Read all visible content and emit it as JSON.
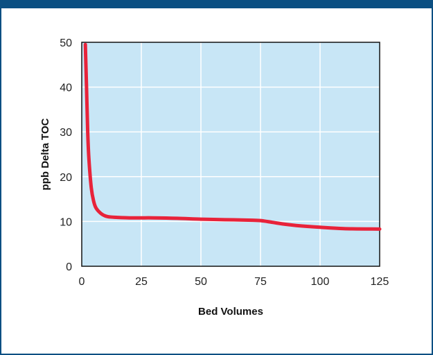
{
  "chart_data": {
    "type": "line",
    "title": "",
    "xlabel": "Bed Volumes",
    "ylabel": "ppb Delta TOC",
    "xlim": [
      0,
      125
    ],
    "ylim": [
      0,
      50
    ],
    "x_ticks": [
      "0",
      "25",
      "50",
      "75",
      "100",
      "125"
    ],
    "y_ticks": [
      "0",
      "10",
      "20",
      "30",
      "40",
      "50"
    ],
    "grid": true,
    "legend": "none",
    "series": [
      {
        "x": [
          1.5,
          2,
          2.5,
          3,
          4,
          5,
          6,
          8,
          10,
          12,
          15,
          20,
          25,
          30,
          40,
          50,
          60,
          70,
          75,
          80,
          85,
          90,
          100,
          110,
          125
        ],
        "y": [
          49.5,
          40,
          30,
          24,
          17.5,
          14.5,
          13,
          11.8,
          11.2,
          11,
          10.9,
          10.8,
          10.8,
          10.8,
          10.7,
          10.5,
          10.4,
          10.3,
          10.2,
          9.8,
          9.4,
          9.1,
          8.7,
          8.4,
          8.3
        ]
      }
    ],
    "colors": {
      "plot_background": "#c8e6f6",
      "line": "#e8233a",
      "grid": "#ffffff",
      "frame": "#0b4f82"
    }
  }
}
